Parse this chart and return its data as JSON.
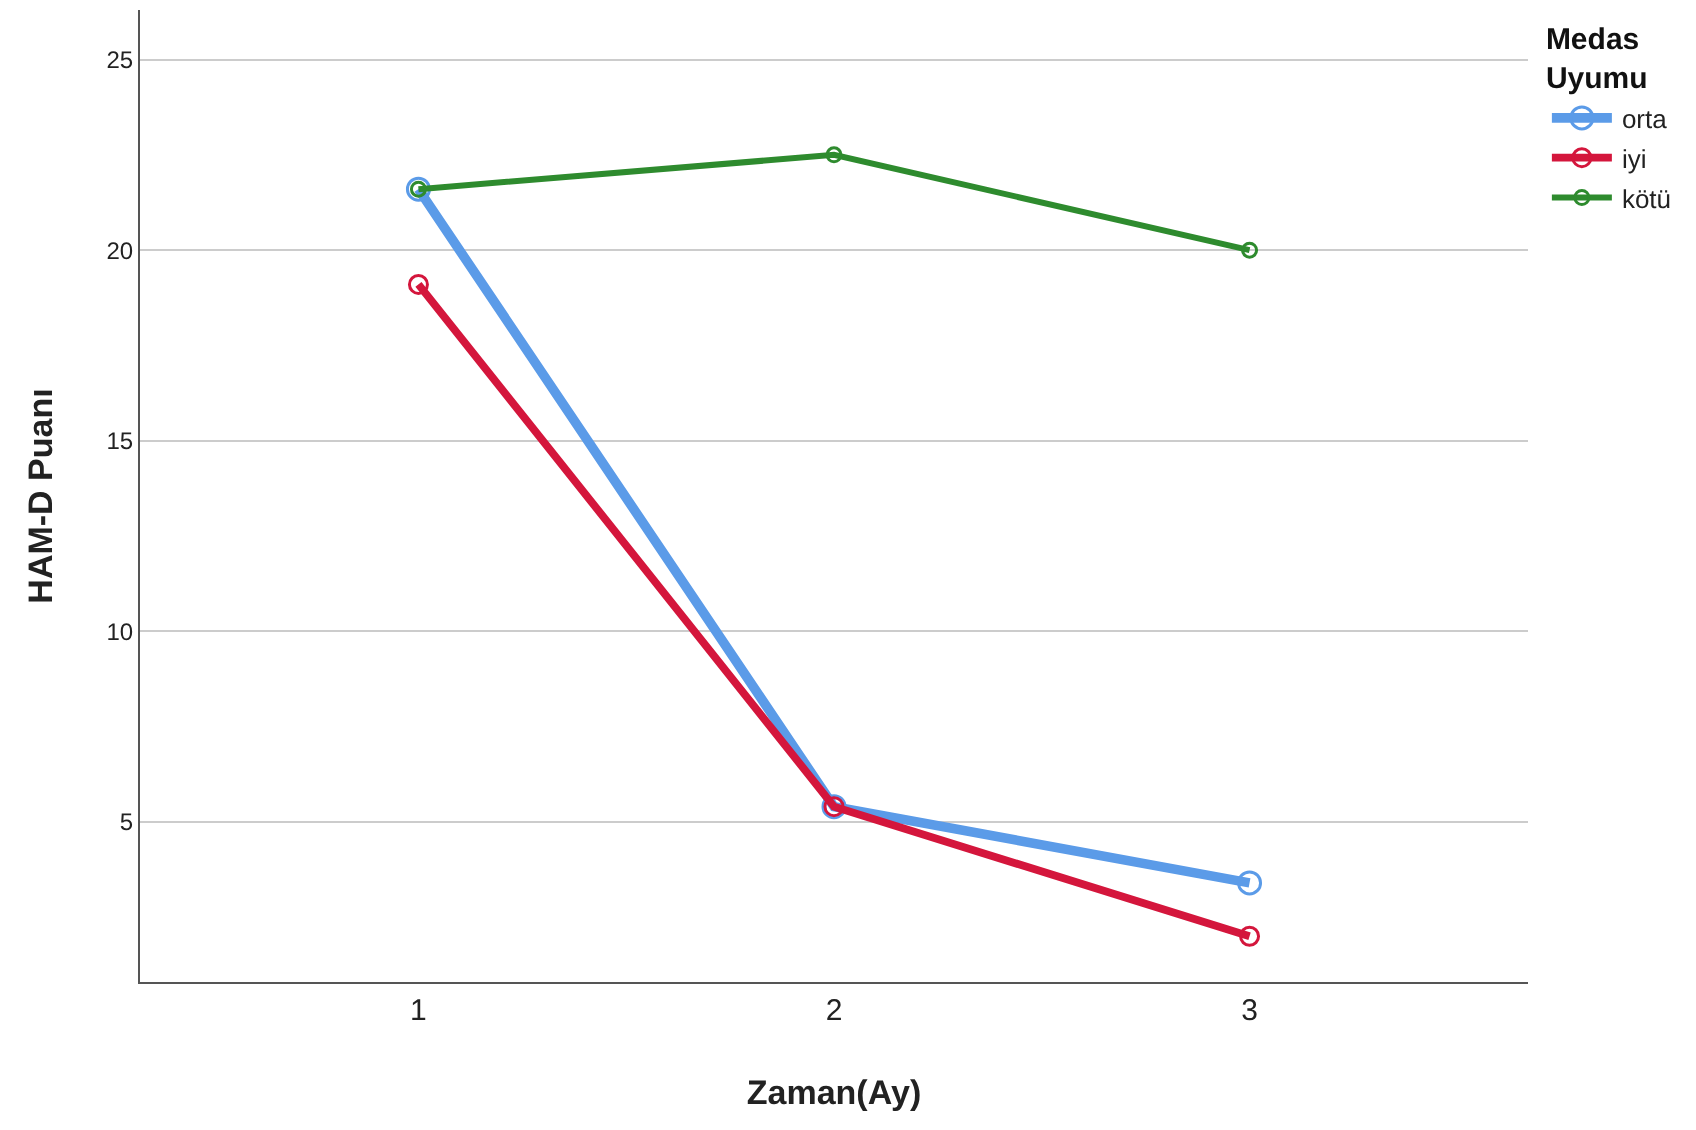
{
  "chart_data": {
    "type": "line",
    "xlabel": "Zaman(Ay)",
    "ylabel": "HAM-D Puanı",
    "legend_title": "Medas Uyumu",
    "categories": [
      "1",
      "2",
      "3"
    ],
    "series": [
      {
        "name": "orta",
        "color": "#5b9be8",
        "values": [
          21.6,
          5.4,
          3.4
        ]
      },
      {
        "name": "iyi",
        "color": "#d4163c",
        "values": [
          19.1,
          5.4,
          2.0
        ]
      },
      {
        "name": "kötü",
        "color": "#2e8b2e",
        "values": [
          21.6,
          22.5,
          20.0
        ]
      }
    ],
    "ylim": [
      0.8,
      26.3
    ],
    "yticks": [
      5,
      10,
      15,
      20,
      25
    ],
    "grid": "y",
    "legend": "top right",
    "marker": "circle",
    "line_style": "solid"
  }
}
